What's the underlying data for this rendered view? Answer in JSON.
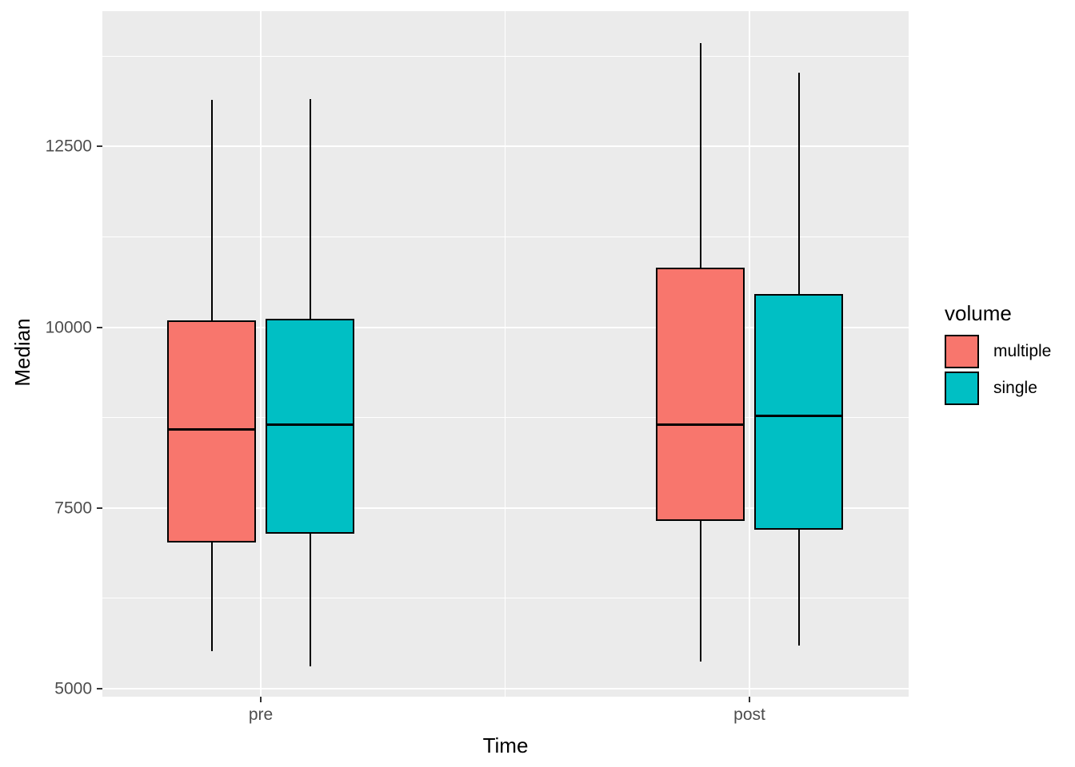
{
  "chart_data": {
    "type": "boxplot",
    "title": "",
    "xlabel": "Time",
    "ylabel": "Median",
    "categories": [
      "pre",
      "post"
    ],
    "y_ticks": [
      5000,
      7500,
      10000,
      12500
    ],
    "y_tick_labels": [
      "5000",
      "7500",
      "10000",
      "12500"
    ],
    "y_minor_gridlines": [
      6250,
      8750,
      11250,
      13750
    ],
    "ylim": [
      4890,
      14373
    ],
    "grid": true,
    "legend_position": "right",
    "legend": {
      "title": "volume",
      "entries": [
        {
          "label": "multiple",
          "color": "#F8766D"
        },
        {
          "label": "single",
          "color": "#00BFC4"
        }
      ]
    },
    "series": [
      {
        "name": "multiple",
        "color": "#F8766D",
        "boxes": [
          {
            "category": "pre",
            "whisker_low": 5520,
            "q1": 7020,
            "median": 8590,
            "q3": 10100,
            "whisker_high": 13150
          },
          {
            "category": "post",
            "whisker_low": 5380,
            "q1": 7320,
            "median": 8650,
            "q3": 10830,
            "whisker_high": 13930
          }
        ]
      },
      {
        "name": "single",
        "color": "#00BFC4",
        "boxes": [
          {
            "category": "pre",
            "whisker_low": 5310,
            "q1": 7140,
            "median": 8650,
            "q3": 10120,
            "whisker_high": 13160
          },
          {
            "category": "post",
            "whisker_low": 5600,
            "q1": 7200,
            "median": 8780,
            "q3": 10460,
            "whisker_high": 13520
          }
        ]
      }
    ],
    "colors": {
      "panel_bg": "#EBEBEB",
      "gridline": "#FFFFFF",
      "tick_text": "#4D4D4D",
      "axis_title_text": "#000000",
      "box_outline": "#000000"
    }
  }
}
